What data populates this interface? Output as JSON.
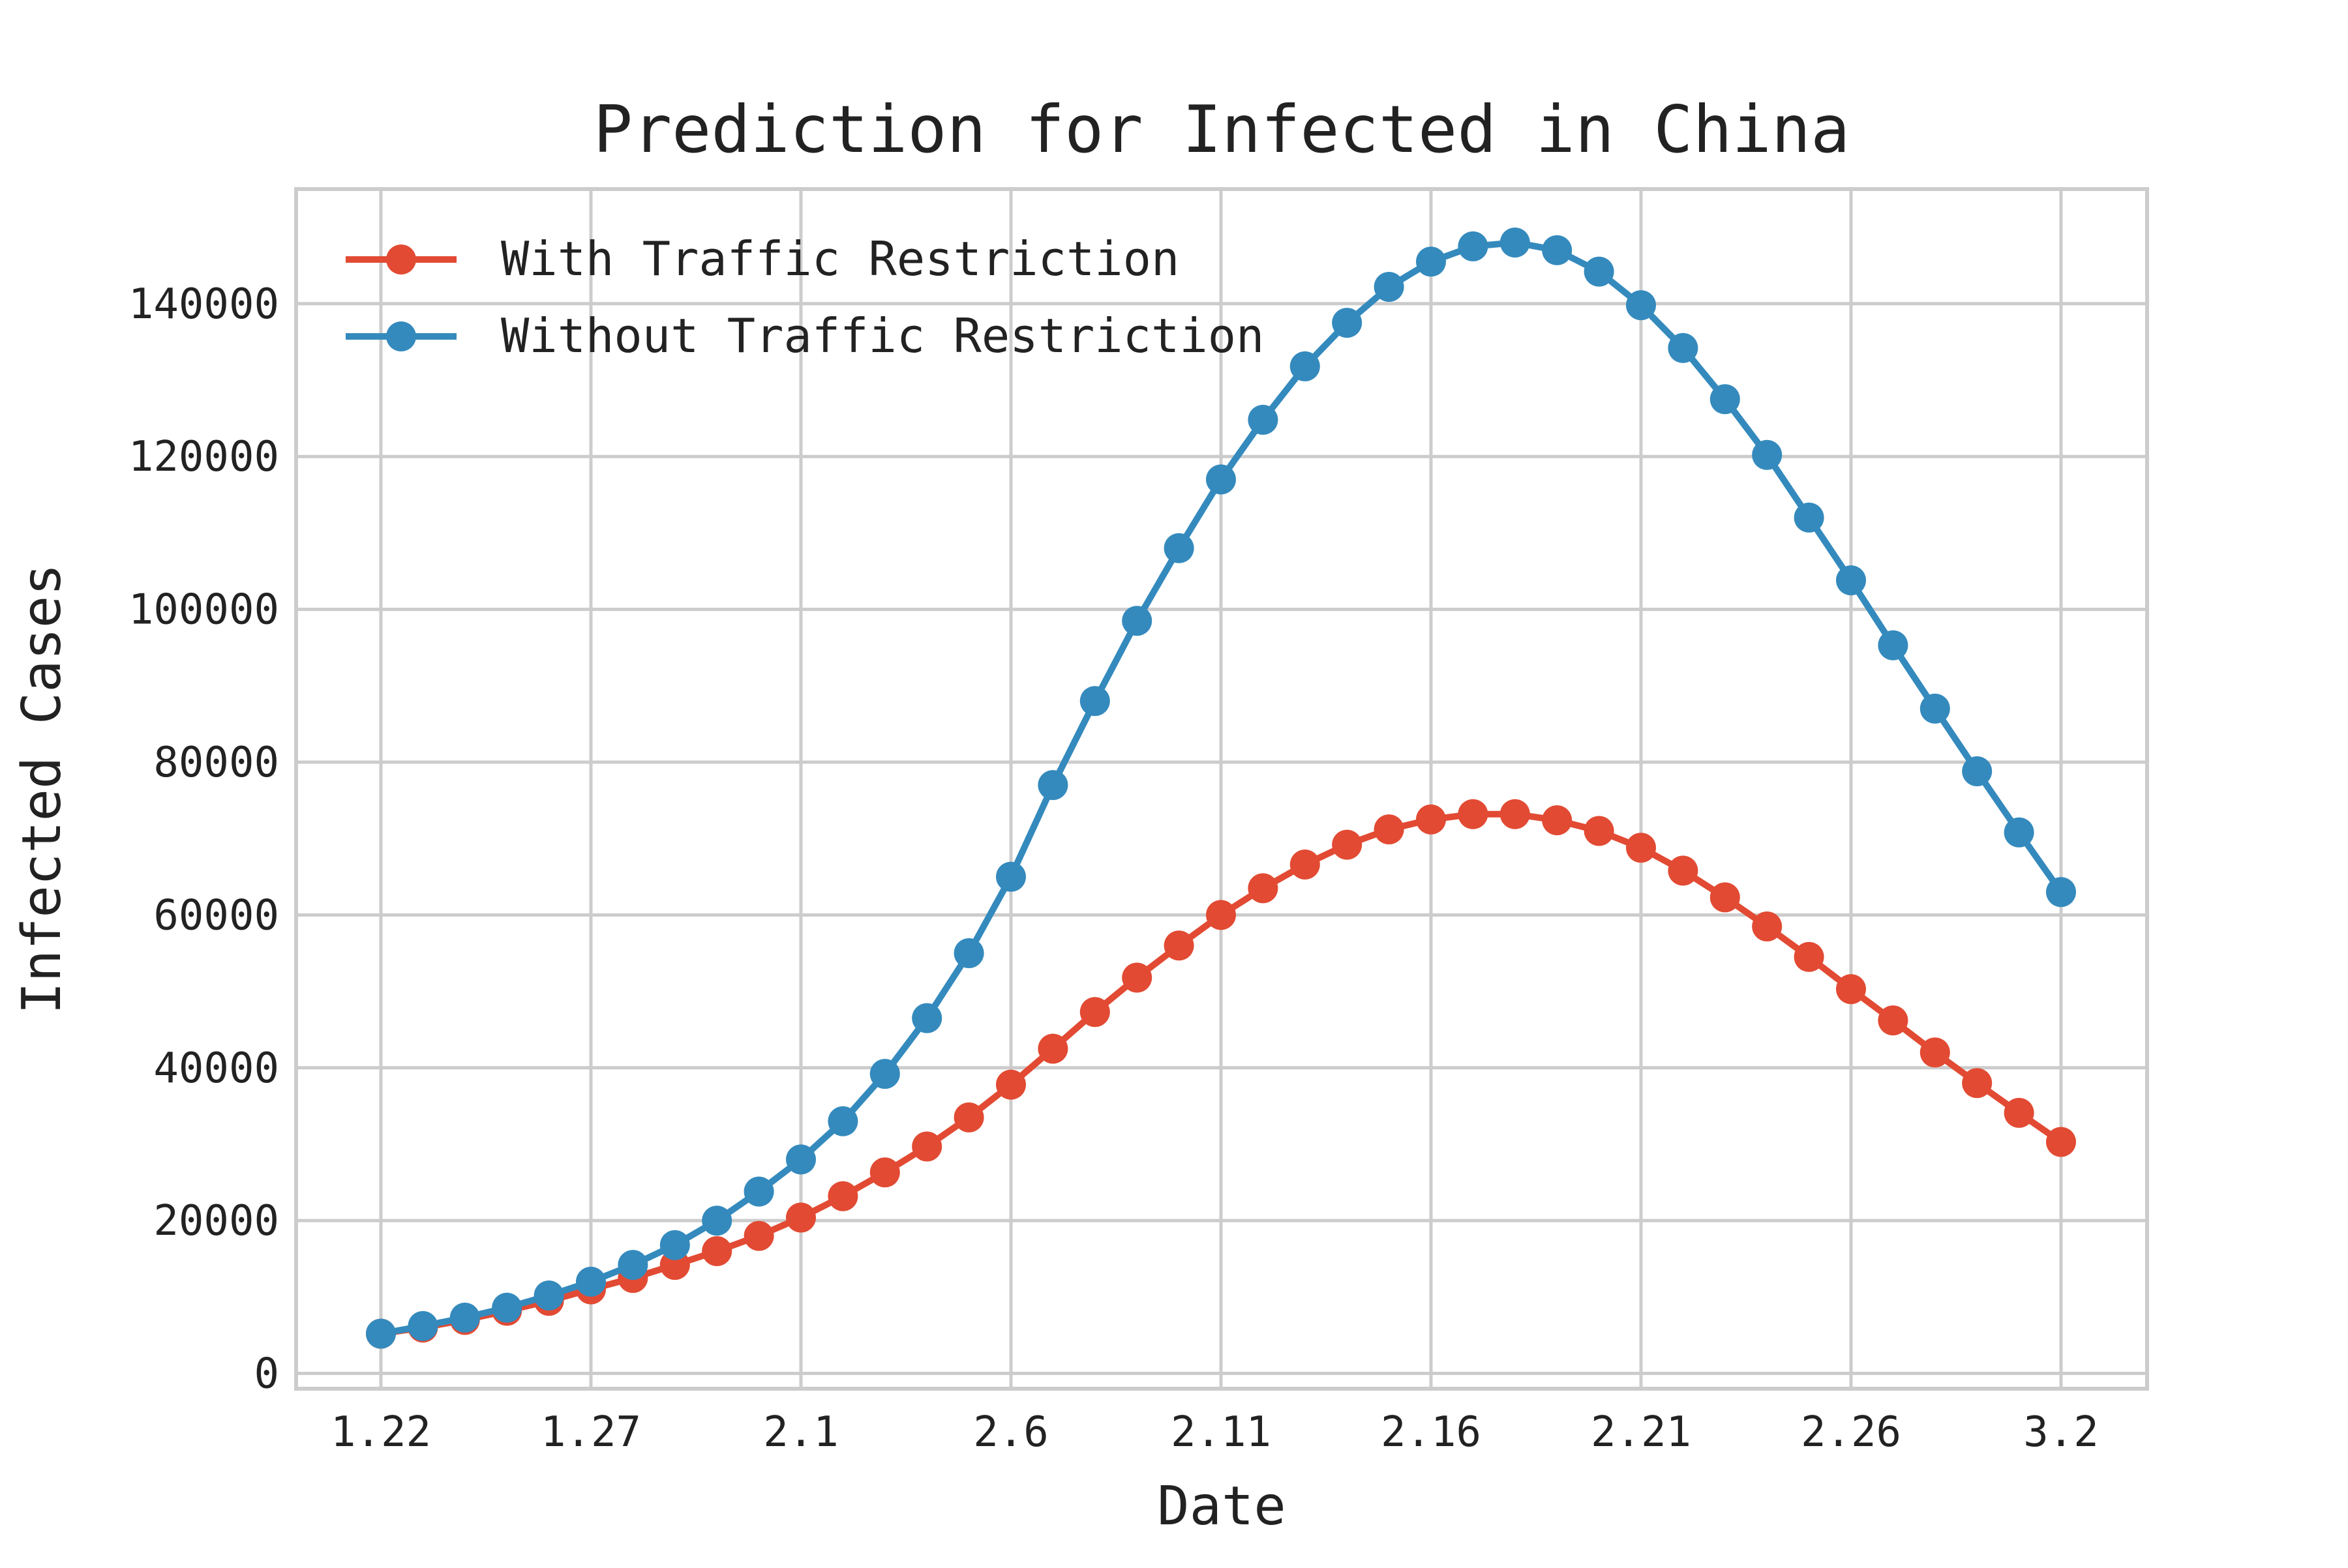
{
  "chart_data": {
    "type": "line",
    "title": "Prediction for Infected in China",
    "xlabel": "Date",
    "ylabel": "Infected Cases",
    "xtick_labels": [
      "1.22",
      "1.27",
      "2.1",
      "2.6",
      "2.11",
      "2.16",
      "2.21",
      "2.26",
      "3.2"
    ],
    "yticks": [
      0,
      20000,
      40000,
      60000,
      80000,
      100000,
      120000,
      140000
    ],
    "ytick_labels": [
      "0",
      "20000",
      "40000",
      "60000",
      "80000",
      "100000",
      "120000",
      "140000"
    ],
    "ylim": [
      -2000,
      155000
    ],
    "grid": true,
    "legend_position": "top-left",
    "dates": [
      "1.22",
      "1.23",
      "1.24",
      "1.25",
      "1.26",
      "1.27",
      "1.28",
      "1.29",
      "1.30",
      "1.31",
      "2.1",
      "2.2",
      "2.3",
      "2.4",
      "2.5",
      "2.6",
      "2.7",
      "2.8",
      "2.9",
      "2.10",
      "2.11",
      "2.12",
      "2.13",
      "2.14",
      "2.15",
      "2.16",
      "2.17",
      "2.18",
      "2.19",
      "2.20",
      "2.21",
      "2.22",
      "2.23",
      "2.24",
      "2.25",
      "2.26",
      "2.27",
      "2.28",
      "2.29",
      "3.1",
      "3.2"
    ],
    "series": [
      {
        "name": "With Traffic Restriction",
        "color": "#e24a33",
        "values": [
          5200,
          6000,
          7000,
          8200,
          9500,
          11000,
          12500,
          14200,
          16000,
          18000,
          20400,
          23200,
          26300,
          29700,
          33500,
          37800,
          42500,
          47300,
          51800,
          56000,
          60000,
          63500,
          66600,
          69200,
          71200,
          72500,
          73200,
          73200,
          72400,
          71000,
          68800,
          65800,
          62300,
          58500,
          54500,
          50300,
          46200,
          42000,
          38000,
          34100,
          30300
        ]
      },
      {
        "name": "Without Traffic Restriction",
        "color": "#348abd",
        "values": [
          5200,
          6200,
          7300,
          8600,
          10200,
          12000,
          14200,
          16800,
          20000,
          23800,
          28000,
          33000,
          39200,
          46500,
          55000,
          65000,
          77000,
          88000,
          98500,
          108000,
          117000,
          124800,
          131800,
          137500,
          142200,
          145500,
          147500,
          148000,
          147000,
          144200,
          139800,
          134200,
          127500,
          120200,
          112000,
          103800,
          95300,
          87000,
          78800,
          70800,
          63000
        ]
      }
    ]
  }
}
